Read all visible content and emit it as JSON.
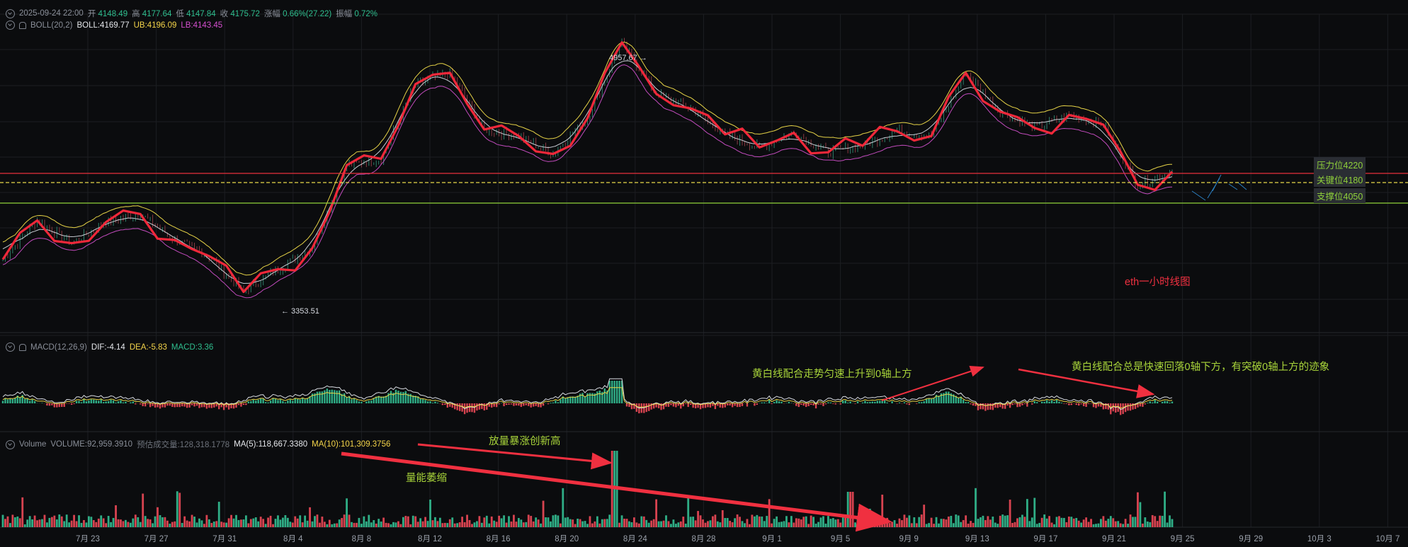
{
  "header": {
    "datetime": "2025-09-24 22:00",
    "open_key": "开",
    "open": "4148.49",
    "high_key": "高",
    "high": "4177.64",
    "low_key": "低",
    "low": "4147.84",
    "close_key": "收",
    "close": "4175.72",
    "change_key": "涨幅",
    "change": "0.66%(27.22)",
    "amp_key": "振幅",
    "amp": "0.72%"
  },
  "boll": {
    "label": "BOLL(20,2)",
    "mid": "BOLL:4169.77",
    "ub": "UB:4196.09",
    "lb": "LB:4143.45"
  },
  "macd": {
    "label": "MACD(12,26,9)",
    "dif": "DIF:-4.14",
    "dea": "DEA:-5.83",
    "macd": "MACD:3.36"
  },
  "volume": {
    "label": "Volume",
    "volume": "VOLUME:92,959.3910",
    "est": "预估成交量:128,318.1778",
    "ma5": "MA(5):118,667.3380",
    "ma10": "MA(10):101,309.3756"
  },
  "price_marks": {
    "high_mark": "4957.67 →",
    "low_mark": "← 3353.51"
  },
  "levels": {
    "resistance": "压力位4220",
    "key": "关键位4180",
    "support": "支撑位4050"
  },
  "annotations": {
    "chart_title": "eth一小时线图",
    "macd_note_1": "黄白线配合走势匀速上升到0轴上方",
    "macd_note_2": "黄白线配合总是快速回落0轴下方，有突破0轴上方的迹象",
    "vol_note_1": "放量暴涨创新高",
    "vol_note_2": "量能萎缩"
  },
  "x_axis": [
    "7月 23",
    "7月 27",
    "7月 31",
    "8月 4",
    "8月 8",
    "8月 12",
    "8月 16",
    "8月 20",
    "8月 24",
    "8月 28",
    "9月 1",
    "9月 5",
    "9月 9",
    "9月 13",
    "9月 17",
    "9月 21",
    "9月 25",
    "9月 29",
    "10月 3",
    "10月 7"
  ],
  "colors": {
    "up": "#2fbf8f",
    "down": "#ef4d5a",
    "boll_mid": "#e6e8ec",
    "boll_ub": "#f5d54a",
    "boll_lb": "#d64fd0",
    "trend": "#f0283a",
    "level_red": "#e8303c",
    "level_yellow": "#e8d84a",
    "level_green": "#8fd13a",
    "annot_green": "#a8d43a",
    "annot_red": "#f03040"
  },
  "chart_data": {
    "type": "line",
    "title": "",
    "series": [
      {
        "name": "",
        "x": [
          "7月 21",
          "7月 23",
          "7月 25",
          "7月 27",
          "7月 29",
          "7月 31",
          "8月 2",
          "8月 3",
          "8月 5",
          "8月 7",
          "8月 9",
          "8月 11",
          "8月 13",
          "8月 14",
          "8月 16",
          "8月 18",
          "8月 20",
          "8月 22",
          "8月 23",
          "8月 25",
          "8月 27",
          "8月 29",
          "9月 1",
          "9月 3",
          "9月 5",
          "9月 7",
          "9月 9",
          "9月 11",
          "9月 13",
          "9月 15",
          "9月 17",
          "9月 19",
          "9月 21",
          "9月 22",
          "9月 24"
        ],
        "values": [
          3620,
          3860,
          3720,
          3850,
          3900,
          3740,
          3640,
          3420,
          3560,
          3690,
          4200,
          4240,
          4700,
          4770,
          4420,
          4380,
          4270,
          4490,
          4957,
          4640,
          4550,
          4390,
          4310,
          4400,
          4280,
          4320,
          4410,
          4380,
          4770,
          4530,
          4430,
          4510,
          4450,
          4080,
          4160
        ]
      }
    ],
    "levels": [
      4220,
      4180,
      4050
    ],
    "macd": {
      "dif": -4.14,
      "dea": -5.83,
      "macd": 3.36
    },
    "volume": {
      "volume": 92959.391,
      "ma5": 118667.338,
      "ma10": 101309.3756
    }
  }
}
